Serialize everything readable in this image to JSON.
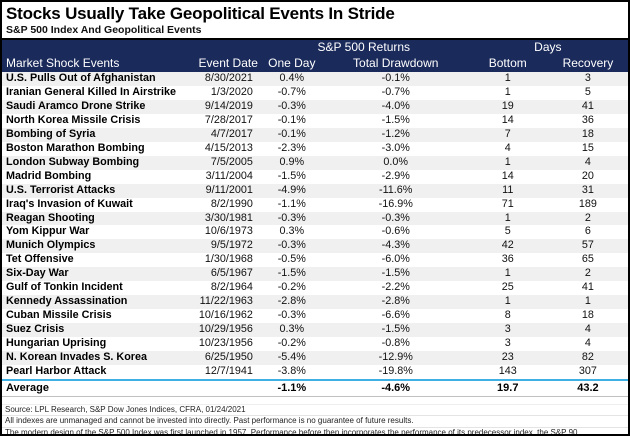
{
  "title": "Stocks Usually Take Geopolitical Events In Stride",
  "subtitle": "S&P 500 Index And Geopolitical Events",
  "colors": {
    "header_navy": "#1A2A5B",
    "alt_row_gray": "#F0F0F0",
    "average_divider_blue": "#3FB0E3",
    "border_black": "#000000"
  },
  "chart_data": {
    "type": "table",
    "title": "Stocks Usually Take Geopolitical Events In Stride",
    "subtitle": "S&P 500 Index And Geopolitical Events",
    "group_headers": {
      "returns": "S&P 500 Returns",
      "days": "Days"
    },
    "columns": [
      "Market Shock Events",
      "Event Date",
      "One Day",
      "Total Drawdown",
      "Bottom",
      "Recovery"
    ],
    "rows": [
      {
        "event": "U.S. Pulls Out of Afghanistan",
        "date": "8/30/2021",
        "one_day": "0.4%",
        "total_drawdown": "-0.1%",
        "bottom": "1",
        "recovery": "3"
      },
      {
        "event": "Iranian General Killed In Airstrike",
        "date": "1/3/2020",
        "one_day": "-0.7%",
        "total_drawdown": "-0.7%",
        "bottom": "1",
        "recovery": "5"
      },
      {
        "event": "Saudi Aramco Drone Strike",
        "date": "9/14/2019",
        "one_day": "-0.3%",
        "total_drawdown": "-4.0%",
        "bottom": "19",
        "recovery": "41"
      },
      {
        "event": "North Korea Missile Crisis",
        "date": "7/28/2017",
        "one_day": "-0.1%",
        "total_drawdown": "-1.5%",
        "bottom": "14",
        "recovery": "36"
      },
      {
        "event": "Bombing of Syria",
        "date": "4/7/2017",
        "one_day": "-0.1%",
        "total_drawdown": "-1.2%",
        "bottom": "7",
        "recovery": "18"
      },
      {
        "event": "Boston Marathon Bombing",
        "date": "4/15/2013",
        "one_day": "-2.3%",
        "total_drawdown": "-3.0%",
        "bottom": "4",
        "recovery": "15"
      },
      {
        "event": "London Subway Bombing",
        "date": "7/5/2005",
        "one_day": "0.9%",
        "total_drawdown": "0.0%",
        "bottom": "1",
        "recovery": "4"
      },
      {
        "event": "Madrid Bombing",
        "date": "3/11/2004",
        "one_day": "-1.5%",
        "total_drawdown": "-2.9%",
        "bottom": "14",
        "recovery": "20"
      },
      {
        "event": "U.S. Terrorist Attacks",
        "date": "9/11/2001",
        "one_day": "-4.9%",
        "total_drawdown": "-11.6%",
        "bottom": "11",
        "recovery": "31"
      },
      {
        "event": "Iraq's Invasion of Kuwait",
        "date": "8/2/1990",
        "one_day": "-1.1%",
        "total_drawdown": "-16.9%",
        "bottom": "71",
        "recovery": "189"
      },
      {
        "event": "Reagan Shooting",
        "date": "3/30/1981",
        "one_day": "-0.3%",
        "total_drawdown": "-0.3%",
        "bottom": "1",
        "recovery": "2"
      },
      {
        "event": "Yom Kippur War",
        "date": "10/6/1973",
        "one_day": "0.3%",
        "total_drawdown": "-0.6%",
        "bottom": "5",
        "recovery": "6"
      },
      {
        "event": "Munich Olympics",
        "date": "9/5/1972",
        "one_day": "-0.3%",
        "total_drawdown": "-4.3%",
        "bottom": "42",
        "recovery": "57"
      },
      {
        "event": "Tet Offensive",
        "date": "1/30/1968",
        "one_day": "-0.5%",
        "total_drawdown": "-6.0%",
        "bottom": "36",
        "recovery": "65"
      },
      {
        "event": "Six-Day War",
        "date": "6/5/1967",
        "one_day": "-1.5%",
        "total_drawdown": "-1.5%",
        "bottom": "1",
        "recovery": "2"
      },
      {
        "event": "Gulf of Tonkin Incident",
        "date": "8/2/1964",
        "one_day": "-0.2%",
        "total_drawdown": "-2.2%",
        "bottom": "25",
        "recovery": "41"
      },
      {
        "event": "Kennedy Assassination",
        "date": "11/22/1963",
        "one_day": "-2.8%",
        "total_drawdown": "-2.8%",
        "bottom": "1",
        "recovery": "1"
      },
      {
        "event": "Cuban Missile Crisis",
        "date": "10/16/1962",
        "one_day": "-0.3%",
        "total_drawdown": "-6.6%",
        "bottom": "8",
        "recovery": "18"
      },
      {
        "event": "Suez Crisis",
        "date": "10/29/1956",
        "one_day": "0.3%",
        "total_drawdown": "-1.5%",
        "bottom": "3",
        "recovery": "4"
      },
      {
        "event": "Hungarian Uprising",
        "date": "10/23/1956",
        "one_day": "-0.2%",
        "total_drawdown": "-0.8%",
        "bottom": "3",
        "recovery": "4"
      },
      {
        "event": "N. Korean Invades S. Korea",
        "date": "6/25/1950",
        "one_day": "-5.4%",
        "total_drawdown": "-12.9%",
        "bottom": "23",
        "recovery": "82"
      },
      {
        "event": "Pearl Harbor Attack",
        "date": "12/7/1941",
        "one_day": "-3.8%",
        "total_drawdown": "-19.8%",
        "bottom": "143",
        "recovery": "307"
      }
    ],
    "average": {
      "label": "Average",
      "date": "",
      "one_day": "-1.1%",
      "total_drawdown": "-4.6%",
      "bottom": "19.7",
      "recovery": "43.2"
    }
  },
  "footnotes": {
    "line1": "Source: LPL Research, S&P Dow Jones Indices, CFRA, 01/24/2021",
    "line2": "All indexes are unmanaged and cannot be invested into directly.  Past performance is no guarantee of future results.",
    "line3": "The modern design of the S&P 500 Index was first launched in 1957. Performance before then incorporates the performance of its predecessor index, the S&P 90."
  }
}
